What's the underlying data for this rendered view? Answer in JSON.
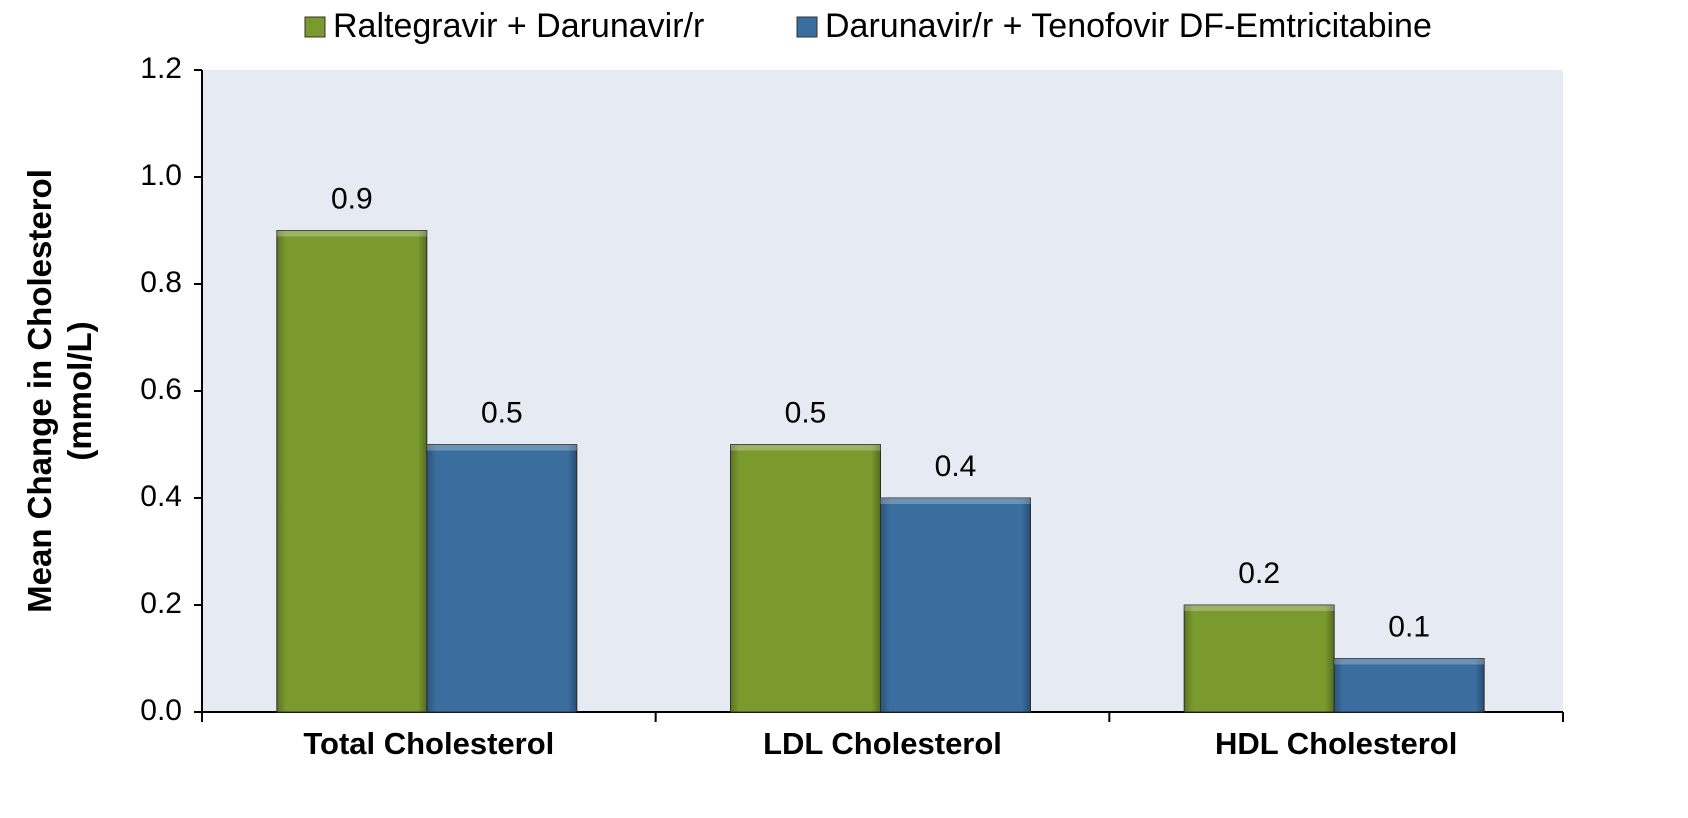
{
  "chart_data": {
    "type": "bar",
    "ylabel": [
      "Mean Change in Cholesterol",
      "(mmol/L)"
    ],
    "categories": [
      "Total Cholesterol",
      "LDL Cholesterol",
      "HDL Cholesterol"
    ],
    "series": [
      {
        "name": "Raltegravir + Darunavir/r",
        "color": "#7a9a2e",
        "values": [
          0.9,
          0.5,
          0.2
        ]
      },
      {
        "name": "Darunavir/r + Tenofovir DF-Emtricitabine",
        "color": "#3a6e9f",
        "values": [
          0.5,
          0.4,
          0.1
        ]
      }
    ],
    "ylim": [
      0,
      1.2
    ],
    "yticks": [
      {
        "value": 0,
        "label": "0.0"
      },
      0.2,
      0.4,
      0.6,
      0.8,
      {
        "value": 1,
        "label": "1.0"
      },
      1.2
    ],
    "legend": "top"
  }
}
